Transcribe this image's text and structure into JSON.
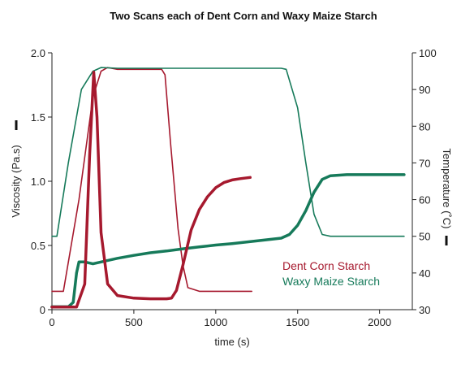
{
  "chart_data": {
    "type": "line",
    "title": "Two Scans each of Dent Corn and Waxy Maize Starch",
    "xlabel": "time (s)",
    "ylabel_left": "Viscosity (Pa.s)",
    "ylabel_right": "Temperature (˚C)",
    "xlim": [
      0,
      2200
    ],
    "ylim_left": [
      0,
      2.0
    ],
    "ylim_right": [
      30,
      100
    ],
    "x_ticks": [
      0,
      500,
      1000,
      1500,
      2000
    ],
    "y_left_ticks": [
      "0",
      "0.5",
      "1.0",
      "1.5",
      "2.0"
    ],
    "y_right_ticks": [
      "30",
      "40",
      "50",
      "60",
      "70",
      "80",
      "90",
      "100"
    ],
    "legend": {
      "placement": "inside-right",
      "entries": [
        {
          "label": "Dent Corn Starch",
          "color": "#a6192e"
        },
        {
          "label": "Waxy Maize Starch",
          "color": "#167a5a"
        }
      ]
    },
    "series": [
      {
        "sample": "Dent Corn Starch",
        "quantity": "viscosity",
        "axis": "left",
        "color": "#a6192e",
        "weight": "thick",
        "points": [
          [
            0,
            0.02
          ],
          [
            100,
            0.02
          ],
          [
            150,
            0.02
          ],
          [
            200,
            0.2
          ],
          [
            230,
            1.2
          ],
          [
            255,
            1.85
          ],
          [
            275,
            1.5
          ],
          [
            300,
            0.6
          ],
          [
            340,
            0.2
          ],
          [
            400,
            0.11
          ],
          [
            500,
            0.09
          ],
          [
            600,
            0.085
          ],
          [
            700,
            0.085
          ],
          [
            730,
            0.09
          ],
          [
            760,
            0.15
          ],
          [
            800,
            0.35
          ],
          [
            850,
            0.62
          ],
          [
            900,
            0.78
          ],
          [
            950,
            0.88
          ],
          [
            1000,
            0.95
          ],
          [
            1050,
            0.99
          ],
          [
            1100,
            1.01
          ],
          [
            1150,
            1.02
          ],
          [
            1210,
            1.03
          ]
        ]
      },
      {
        "sample": "Dent Corn Starch",
        "quantity": "temperature",
        "axis": "right",
        "color": "#a6192e",
        "weight": "thin",
        "points": [
          [
            0,
            35
          ],
          [
            70,
            35
          ],
          [
            165,
            60
          ],
          [
            250,
            88
          ],
          [
            300,
            95
          ],
          [
            340,
            96
          ],
          [
            400,
            95.5
          ],
          [
            500,
            95.5
          ],
          [
            600,
            95.5
          ],
          [
            670,
            95.5
          ],
          [
            690,
            94
          ],
          [
            725,
            75
          ],
          [
            770,
            52
          ],
          [
            800,
            42
          ],
          [
            830,
            36
          ],
          [
            900,
            35
          ],
          [
            1000,
            35
          ],
          [
            1100,
            35
          ],
          [
            1220,
            35
          ]
        ]
      },
      {
        "sample": "Waxy Maize Starch",
        "quantity": "viscosity",
        "axis": "right",
        "color": "#167a5a",
        "weight": "thick",
        "points": [
          [
            0,
            30.8
          ],
          [
            100,
            30.8
          ],
          [
            130,
            32
          ],
          [
            150,
            40
          ],
          [
            165,
            43
          ],
          [
            200,
            43
          ],
          [
            250,
            42.5
          ],
          [
            300,
            43
          ],
          [
            400,
            44
          ],
          [
            500,
            44.8
          ],
          [
            600,
            45.5
          ],
          [
            700,
            46
          ],
          [
            800,
            46.6
          ],
          [
            900,
            47.1
          ],
          [
            1000,
            47.6
          ],
          [
            1100,
            48
          ],
          [
            1200,
            48.5
          ],
          [
            1300,
            49
          ],
          [
            1400,
            49.5
          ],
          [
            1450,
            50.5
          ],
          [
            1500,
            53
          ],
          [
            1550,
            57
          ],
          [
            1600,
            62
          ],
          [
            1650,
            65.5
          ],
          [
            1700,
            66.5
          ],
          [
            1800,
            66.8
          ],
          [
            1900,
            66.8
          ],
          [
            2000,
            66.8
          ],
          [
            2100,
            66.8
          ],
          [
            2150,
            66.8
          ]
        ]
      },
      {
        "sample": "Waxy Maize Starch",
        "quantity": "temperature",
        "axis": "right",
        "color": "#167a5a",
        "weight": "thin",
        "points": [
          [
            0,
            50
          ],
          [
            30,
            50
          ],
          [
            100,
            70
          ],
          [
            180,
            90
          ],
          [
            250,
            95
          ],
          [
            300,
            96
          ],
          [
            400,
            95.8
          ],
          [
            500,
            95.8
          ],
          [
            700,
            95.8
          ],
          [
            1000,
            95.8
          ],
          [
            1200,
            95.8
          ],
          [
            1400,
            95.8
          ],
          [
            1430,
            95.5
          ],
          [
            1500,
            85
          ],
          [
            1550,
            70
          ],
          [
            1600,
            56
          ],
          [
            1650,
            50.5
          ],
          [
            1700,
            50
          ],
          [
            1800,
            50
          ],
          [
            1900,
            50
          ],
          [
            2000,
            50
          ],
          [
            2150,
            50
          ]
        ]
      }
    ]
  }
}
